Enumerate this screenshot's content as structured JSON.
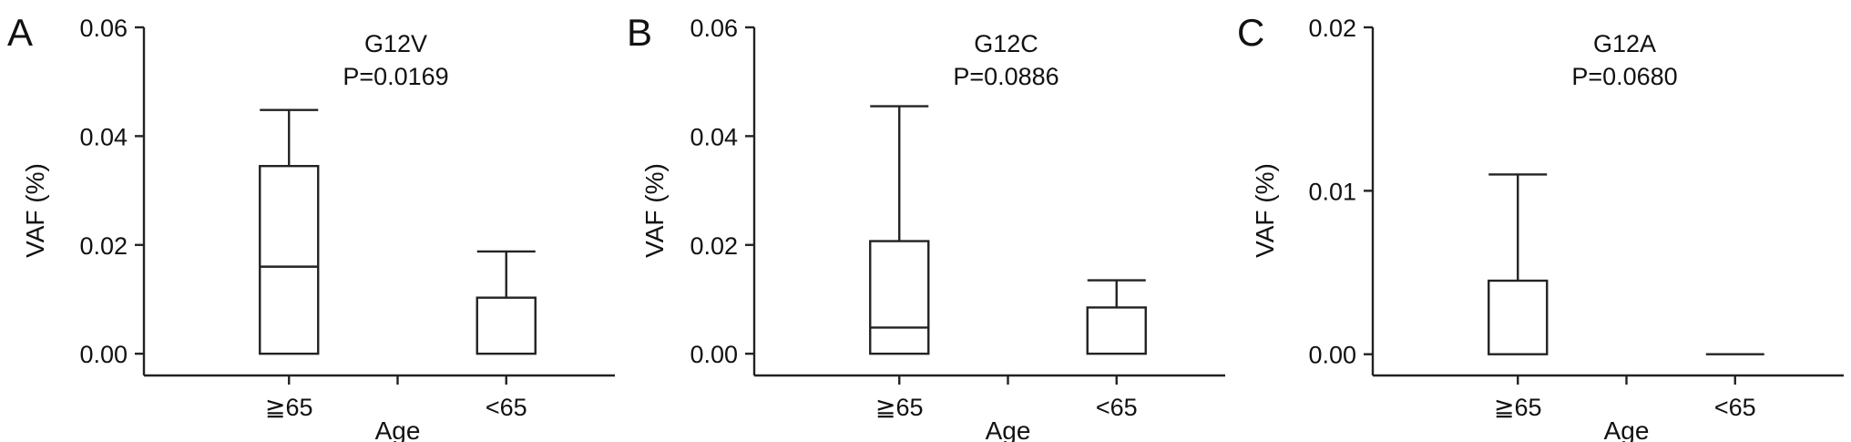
{
  "chart_data": [
    {
      "type": "box",
      "panel_label": "A",
      "title": "G12V",
      "subtitle": "P=0.0169",
      "xlabel": "Age",
      "ylabel": "VAF (%)",
      "ylim": [
        -0.004,
        0.06
      ],
      "yticks": [
        0.0,
        0.02,
        0.04,
        0.06
      ],
      "ytick_labels": [
        "0.00",
        "0.02",
        "0.04",
        "0.06"
      ],
      "categories": [
        "≧65",
        "<65"
      ],
      "boxes": [
        {
          "category": "≧65",
          "min": 0.0,
          "q1": 0.0,
          "median": 0.016,
          "q3": 0.0345,
          "max": 0.0448
        },
        {
          "category": "<65",
          "min": 0.0,
          "q1": 0.0,
          "median": 0.0,
          "q3": 0.0103,
          "max": 0.0188
        }
      ]
    },
    {
      "type": "box",
      "panel_label": "B",
      "title": "G12C",
      "subtitle": "P=0.0886",
      "xlabel": "Age",
      "ylabel": "VAF (%)",
      "ylim": [
        -0.004,
        0.06
      ],
      "yticks": [
        0.0,
        0.02,
        0.04,
        0.06
      ],
      "ytick_labels": [
        "0.00",
        "0.02",
        "0.04",
        "0.06"
      ],
      "categories": [
        "≧65",
        "<65"
      ],
      "boxes": [
        {
          "category": "≧65",
          "min": 0.0,
          "q1": 0.0,
          "median": 0.0048,
          "q3": 0.0207,
          "max": 0.0455
        },
        {
          "category": "<65",
          "min": 0.0,
          "q1": 0.0,
          "median": 0.0,
          "q3": 0.0085,
          "max": 0.0135
        }
      ]
    },
    {
      "type": "box",
      "panel_label": "C",
      "title": "G12A",
      "subtitle": "P=0.0680",
      "xlabel": "Age",
      "ylabel": "VAF (%)",
      "ylim": [
        -0.0013,
        0.02
      ],
      "yticks": [
        0.0,
        0.01,
        0.02
      ],
      "ytick_labels": [
        "0.00",
        "0.01",
        "0.02"
      ],
      "categories": [
        "≧65",
        "<65"
      ],
      "boxes": [
        {
          "category": "≧65",
          "min": 0.0,
          "q1": 0.0,
          "median": 0.0,
          "q3": 0.0045,
          "max": 0.011
        },
        {
          "category": "<65",
          "min": 0.0,
          "q1": 0.0,
          "median": 0.0,
          "q3": 0.0,
          "max": 0.0
        }
      ]
    }
  ]
}
